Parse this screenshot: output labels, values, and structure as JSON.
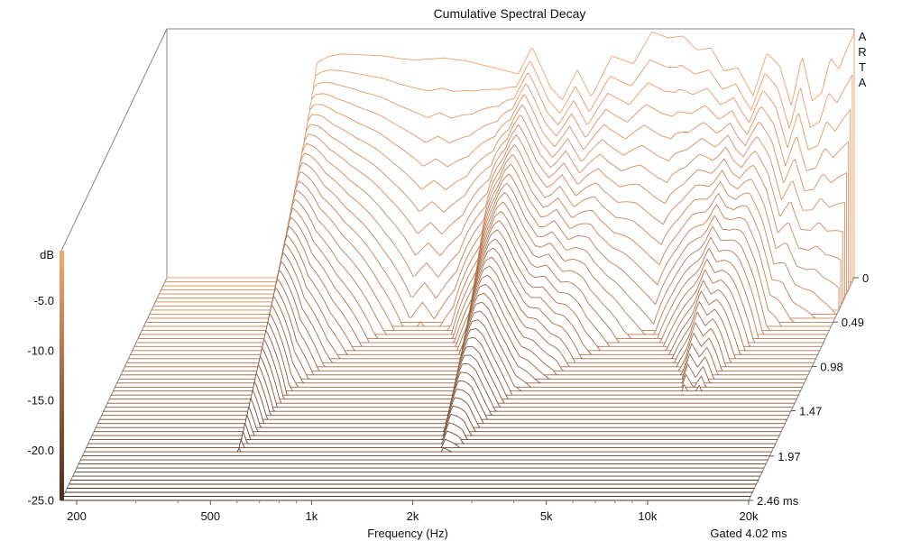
{
  "chart_data": {
    "type": "area",
    "title": "Cumulative Spectral Decay",
    "xlabel": "Frequency (Hz)",
    "ylabel": "dB",
    "zlabel": "",
    "x_scale": "log",
    "xlim": [
      180,
      20000
    ],
    "ylim": [
      -25,
      0
    ],
    "zlim": [
      0,
      2.46
    ],
    "x_ticks": [
      {
        "value": 200,
        "label": "200"
      },
      {
        "value": 500,
        "label": "500"
      },
      {
        "value": 1000,
        "label": "1k"
      },
      {
        "value": 2000,
        "label": "2k"
      },
      {
        "value": 5000,
        "label": "5k"
      },
      {
        "value": 10000,
        "label": "10k"
      },
      {
        "value": 20000,
        "label": "20k"
      }
    ],
    "y_ticks": [
      {
        "value": -5,
        "label": "-5.0"
      },
      {
        "value": -10,
        "label": "-10.0"
      },
      {
        "value": -15,
        "label": "-15.0"
      },
      {
        "value": -20,
        "label": "-20.0"
      },
      {
        "value": -25,
        "label": "-25.0"
      }
    ],
    "z_ticks": [
      {
        "value": 0,
        "label": "0"
      },
      {
        "value": 0.49,
        "label": "0.49"
      },
      {
        "value": 0.98,
        "label": "0.98"
      },
      {
        "value": 1.47,
        "label": "1.47"
      },
      {
        "value": 1.97,
        "label": "1.97"
      },
      {
        "value": 2.46,
        "label": "2.46 ms"
      }
    ],
    "gate_label": "Gated 4.02 ms",
    "watermark": [
      "A",
      "R",
      "T",
      "A"
    ],
    "slice_count": 56,
    "initial_response": {
      "freq": [
        480,
        500,
        550,
        600,
        700,
        800,
        900,
        1000,
        1200,
        1400,
        1700,
        2000,
        2200,
        2500,
        2700,
        3000,
        3300,
        3800,
        4400,
        5000,
        5600,
        6200,
        6800,
        7500,
        8200,
        9000,
        10000,
        11000,
        12000,
        13000,
        14000,
        15000,
        16000,
        17000,
        18000,
        19000,
        20000
      ],
      "db": [
        -25,
        -3.5,
        -2.8,
        -2.6,
        -2.7,
        -2.8,
        -3.1,
        -3.2,
        -3.0,
        -3.3,
        -4.0,
        -4.6,
        -1.9,
        -6.0,
        -7.2,
        -4.2,
        -6.9,
        -2.8,
        -3.6,
        -0.4,
        -1.0,
        -0.8,
        -2.2,
        -2.0,
        -4.3,
        -4.0,
        -6.8,
        -2.5,
        -3.8,
        -7.8,
        -2.8,
        -7.3,
        -6.5,
        -3.0,
        -4.1,
        -2.2,
        -0.5
      ]
    },
    "decay_time_ms": {
      "freq": [
        480,
        500,
        520,
        600,
        700,
        900,
        1100,
        1200,
        1300,
        1500,
        1800,
        2000,
        2100,
        2300,
        2800,
        3500,
        4000,
        5000,
        6000,
        7500,
        8500,
        9000,
        9500,
        10000,
        11000,
        12000,
        13000,
        15000,
        20000
      ],
      "ms": [
        0,
        1.6,
        1.97,
        1.3,
        1.0,
        0.7,
        0.5,
        0.55,
        0.5,
        0.6,
        0.95,
        1.75,
        1.97,
        1.9,
        1.3,
        1.1,
        0.9,
        0.7,
        0.6,
        0.9,
        1.1,
        1.3,
        1.2,
        1.3,
        1.0,
        0.8,
        0.6,
        0.5,
        0.4
      ]
    },
    "grid": false,
    "colors": {
      "top": "#f2a06a",
      "bottom": "#4a3020"
    }
  }
}
